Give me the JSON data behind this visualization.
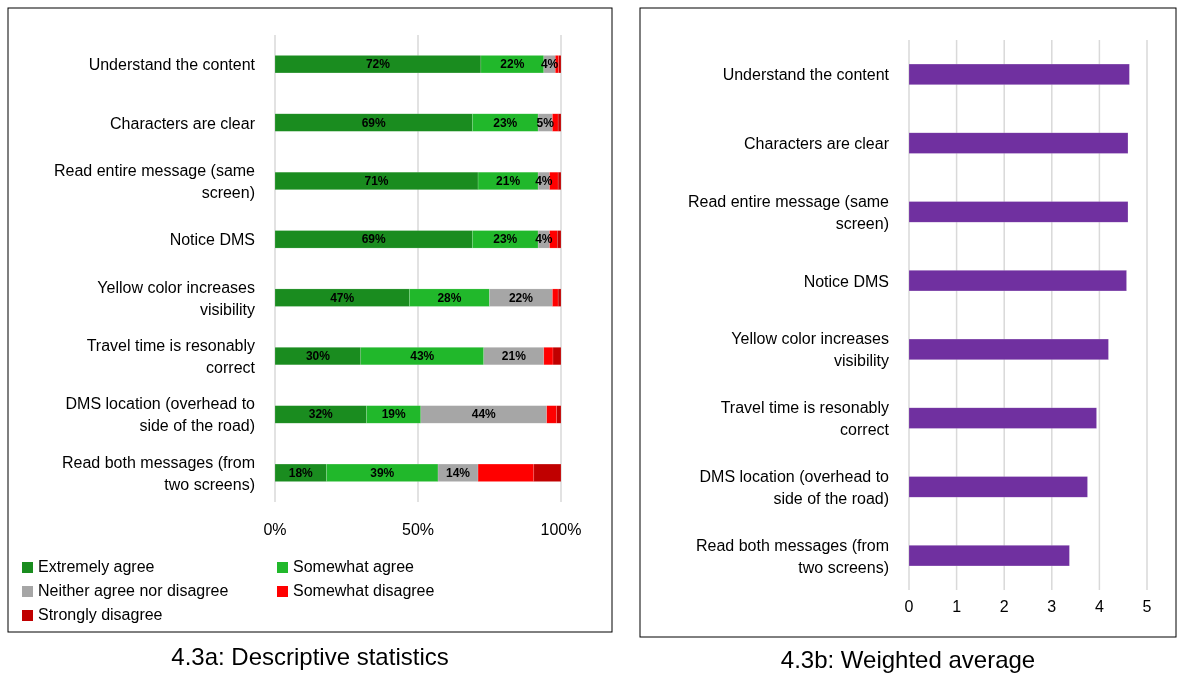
{
  "chart_data": [
    {
      "type": "bar",
      "orientation": "horizontal",
      "stacked": true,
      "title": "4.3a: Descriptive statistics",
      "categories": [
        "Understand the content",
        "Characters are clear",
        "Read entire message (same screen)",
        "Notice DMS",
        "Yellow color increases visibility",
        "Travel time is resonably correct",
        "DMS location (overhead to side of the road)",
        "Read both messages (from two screens)"
      ],
      "series": [
        {
          "name": "Extremely agree",
          "color": "#1a8c1f",
          "values": [
            72,
            69,
            71,
            69,
            47,
            30,
            32,
            18
          ],
          "value_labels": [
            "72%",
            "69%",
            "71%",
            "69%",
            "47%",
            "30%",
            "32%",
            "18%"
          ]
        },
        {
          "name": "Somewhat agree",
          "color": "#21b82b",
          "values": [
            22,
            23,
            21,
            23,
            28,
            43,
            19,
            39
          ],
          "value_labels": [
            "22%",
            "23%",
            "21%",
            "23%",
            "28%",
            "43%",
            "19%",
            "39%"
          ]
        },
        {
          "name": "Neither agree nor disagree",
          "color": "#a6a6a6",
          "values": [
            4,
            5,
            4,
            4,
            22,
            21,
            44,
            14
          ],
          "value_labels": [
            "4%",
            "5%",
            "4%",
            "4%",
            "22%",
            "21%",
            "44%",
            "14%"
          ]
        },
        {
          "name": "Somewhat disagree",
          "color": "#ff0000",
          "values": [
            1.2,
            2,
            3,
            2.7,
            2,
            3.2,
            3.5,
            19.5
          ]
        },
        {
          "name": "Strongly disagree",
          "color": "#c00000",
          "values": [
            0.8,
            1,
            1,
            1.3,
            1,
            2.8,
            1.5,
            9.5
          ]
        }
      ],
      "xlim": [
        0,
        100
      ],
      "xticks": [
        {
          "value": 0,
          "label": "0%"
        },
        {
          "value": 50,
          "label": "50%"
        },
        {
          "value": 100,
          "label": "100%"
        }
      ],
      "grid": "x",
      "legend": "bottom"
    },
    {
      "type": "bar",
      "orientation": "horizontal",
      "title": "4.3b: Weighted average",
      "categories": [
        "Understand the content",
        "Characters are clear",
        "Read entire message (same screen)",
        "Notice DMS",
        "Yellow color increases visibility",
        "Travel time is resonably correct",
        "DMS location (overhead to side of the road)",
        "Read both messages (from two screens)"
      ],
      "series": [
        {
          "color": "#7030a0",
          "values": [
            4.63,
            4.6,
            4.6,
            4.57,
            4.19,
            3.94,
            3.75,
            3.37
          ]
        }
      ],
      "xlim": [
        0,
        5
      ],
      "xticks": [
        0,
        1,
        2,
        3,
        4,
        5
      ],
      "grid": "x"
    }
  ]
}
